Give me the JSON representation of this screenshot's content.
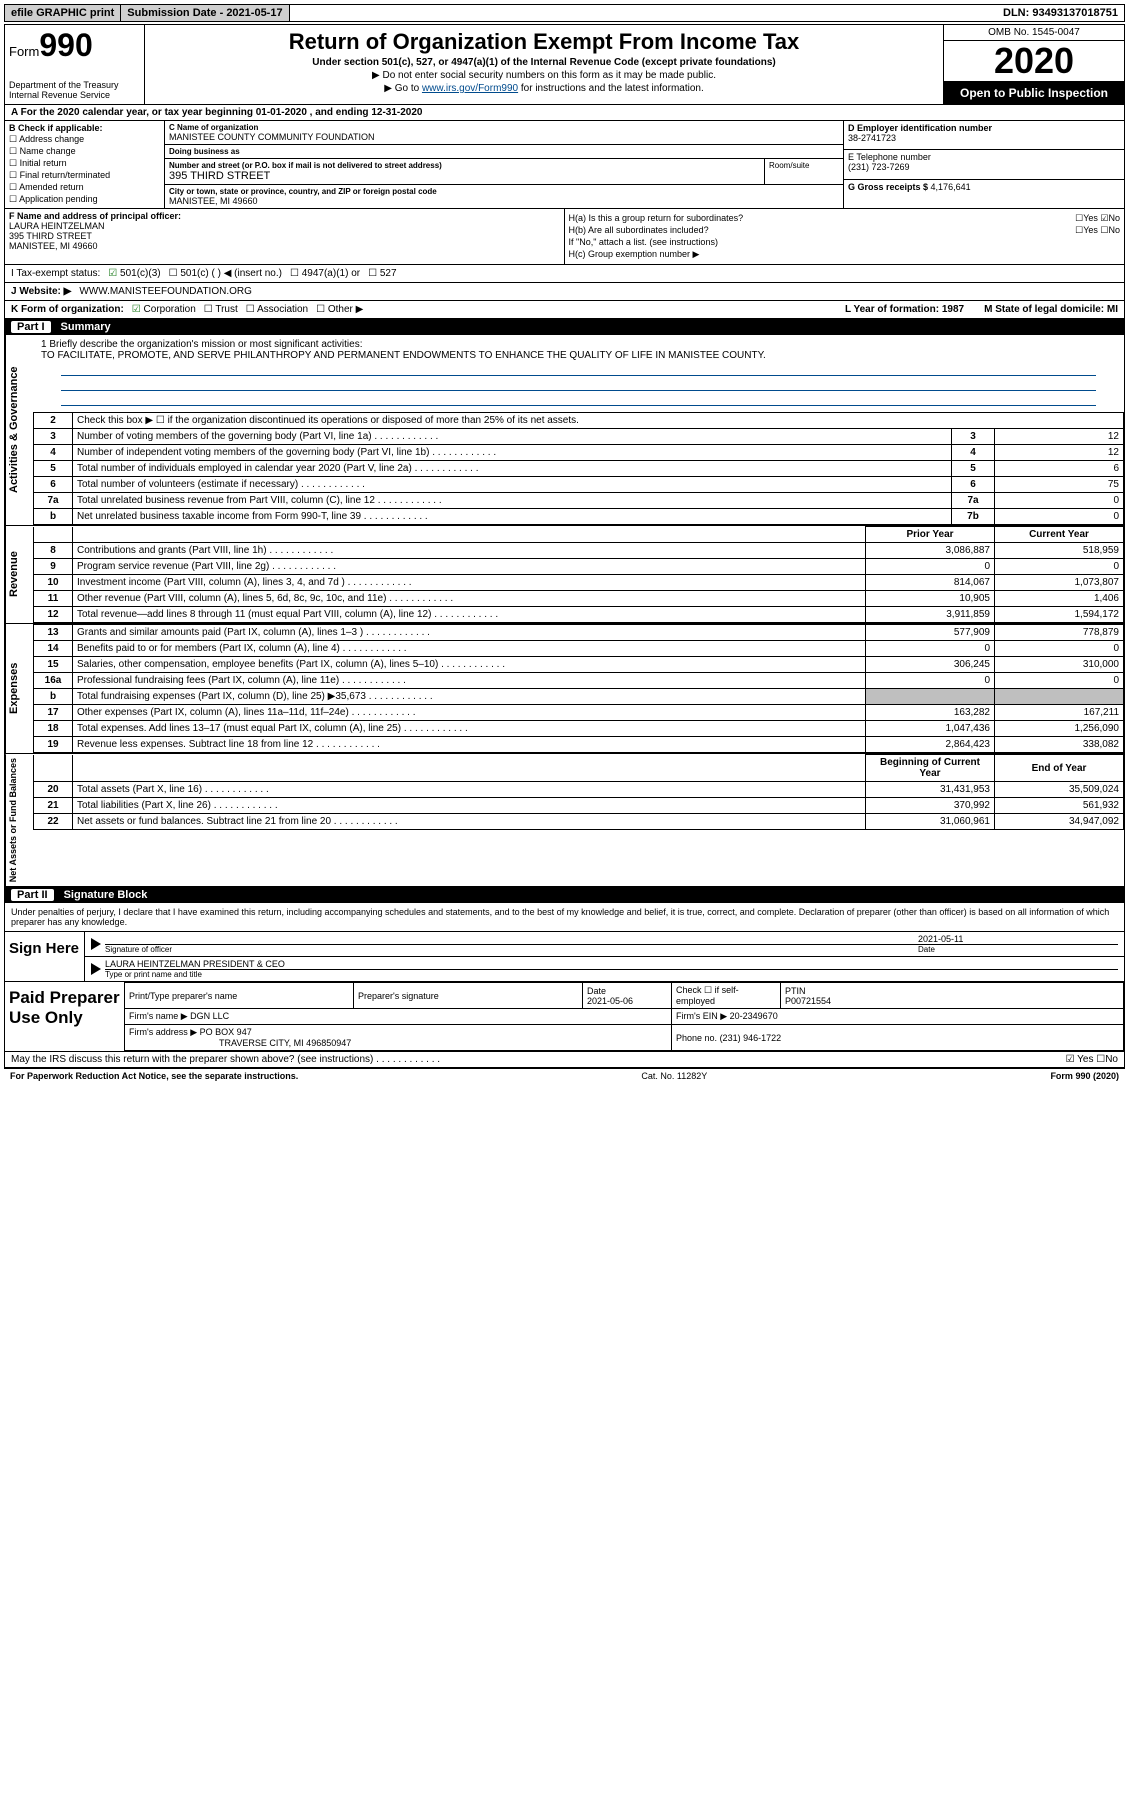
{
  "topbar": {
    "efile": "efile GRAPHIC print",
    "submission_label": "Submission Date - 2021-05-17",
    "dln": "DLN: 93493137018751"
  },
  "header": {
    "form_word": "Form",
    "form_no": "990",
    "dept": "Department of the Treasury\nInternal Revenue Service",
    "title": "Return of Organization Exempt From Income Tax",
    "sub": "Under section 501(c), 527, or 4947(a)(1) of the Internal Revenue Code (except private foundations)",
    "arrow1": "▶ Do not enter social security numbers on this form as it may be made public.",
    "arrow2_pre": "▶ Go to ",
    "arrow2_link": "www.irs.gov/Form990",
    "arrow2_post": " for instructions and the latest information.",
    "omb": "OMB No. 1545-0047",
    "year": "2020",
    "open": "Open to Public Inspection"
  },
  "period": "A For the 2020 calendar year, or tax year beginning 01-01-2020     , and ending 12-31-2020",
  "colB": {
    "hdr": "B Check if applicable:",
    "rows": [
      "Address change",
      "Name change",
      "Initial return",
      "Final return/terminated",
      "Amended return",
      "Application pending"
    ]
  },
  "colC": {
    "name_lbl": "C Name of organization",
    "name": "MANISTEE COUNTY COMMUNITY FOUNDATION",
    "dba_lbl": "Doing business as",
    "dba": "",
    "addr_lbl": "Number and street (or P.O. box if mail is not delivered to street address)",
    "room_lbl": "Room/suite",
    "addr": "395 THIRD STREET",
    "city_lbl": "City or town, state or province, country, and ZIP or foreign postal code",
    "city": "MANISTEE, MI  49660"
  },
  "colD": {
    "d_lbl": "D Employer identification number",
    "d_val": "38-2741723",
    "e_lbl": "E Telephone number",
    "e_val": "(231) 723-7269",
    "g_lbl": "G Gross receipts $ ",
    "g_val": "4,176,641"
  },
  "f": {
    "lbl": "F  Name and address of principal officer:",
    "name": "LAURA HEINTZELMAN",
    "addr1": "395 THIRD STREET",
    "addr2": "MANISTEE, MI  49660"
  },
  "h": {
    "a": "H(a)  Is this a group return for subordinates?",
    "a_yes": "☐Yes",
    "a_no": "☑No",
    "b": "H(b)  Are all subordinates included?",
    "b_yes": "☐Yes",
    "b_no": "☐No",
    "b_note": "If \"No,\" attach a list. (see instructions)",
    "c": "H(c)  Group exemption number ▶"
  },
  "i": {
    "lbl": "I   Tax-exempt status:",
    "o1": "501(c)(3)",
    "o2": "501(c) (  )  ◀ (insert no.)",
    "o3": "4947(a)(1) or",
    "o4": "527"
  },
  "j": {
    "lbl": "J   Website: ▶",
    "val": "WWW.MANISTEEFOUNDATION.ORG"
  },
  "k": {
    "lbl": "K Form of organization:",
    "o1": "Corporation",
    "o2": "Trust",
    "o3": "Association",
    "o4": "Other ▶",
    "l": "L Year of formation: 1987",
    "m": "M State of legal domicile: MI"
  },
  "part1_title": "Summary",
  "sections": {
    "act": "Activities & Governance",
    "rev": "Revenue",
    "exp": "Expenses",
    "net": "Net Assets or Fund Balances"
  },
  "line1": {
    "lbl": "1  Briefly describe the organization's mission or most significant activities:",
    "text": "TO FACILITATE, PROMOTE, AND SERVE PHILANTHROPY AND PERMANENT ENDOWMENTS TO ENHANCE THE QUALITY OF LIFE IN MANISTEE COUNTY."
  },
  "act_rows": [
    {
      "n": "2",
      "d": "Check this box ▶ ☐  if the organization discontinued its operations or disposed of more than 25% of its net assets.",
      "box": "",
      "v": ""
    },
    {
      "n": "3",
      "d": "Number of voting members of the governing body (Part VI, line 1a)",
      "box": "3",
      "v": "12"
    },
    {
      "n": "4",
      "d": "Number of independent voting members of the governing body (Part VI, line 1b)",
      "box": "4",
      "v": "12"
    },
    {
      "n": "5",
      "d": "Total number of individuals employed in calendar year 2020 (Part V, line 2a)",
      "box": "5",
      "v": "6"
    },
    {
      "n": "6",
      "d": "Total number of volunteers (estimate if necessary)",
      "box": "6",
      "v": "75"
    },
    {
      "n": "7a",
      "d": "Total unrelated business revenue from Part VIII, column (C), line 12",
      "box": "7a",
      "v": "0"
    },
    {
      "n": "b",
      "d": "Net unrelated business taxable income from Form 990-T, line 39",
      "box": "7b",
      "v": "0"
    }
  ],
  "two_col_hdr": {
    "prior": "Prior Year",
    "curr": "Current Year"
  },
  "rev_rows": [
    {
      "n": "8",
      "d": "Contributions and grants (Part VIII, line 1h)",
      "p": "3,086,887",
      "c": "518,959"
    },
    {
      "n": "9",
      "d": "Program service revenue (Part VIII, line 2g)",
      "p": "0",
      "c": "0"
    },
    {
      "n": "10",
      "d": "Investment income (Part VIII, column (A), lines 3, 4, and 7d )",
      "p": "814,067",
      "c": "1,073,807"
    },
    {
      "n": "11",
      "d": "Other revenue (Part VIII, column (A), lines 5, 6d, 8c, 9c, 10c, and 11e)",
      "p": "10,905",
      "c": "1,406"
    },
    {
      "n": "12",
      "d": "Total revenue—add lines 8 through 11 (must equal Part VIII, column (A), line 12)",
      "p": "3,911,859",
      "c": "1,594,172"
    }
  ],
  "exp_rows": [
    {
      "n": "13",
      "d": "Grants and similar amounts paid (Part IX, column (A), lines 1–3 )",
      "p": "577,909",
      "c": "778,879"
    },
    {
      "n": "14",
      "d": "Benefits paid to or for members (Part IX, column (A), line 4)",
      "p": "0",
      "c": "0"
    },
    {
      "n": "15",
      "d": "Salaries, other compensation, employee benefits (Part IX, column (A), lines 5–10)",
      "p": "306,245",
      "c": "310,000"
    },
    {
      "n": "16a",
      "d": "Professional fundraising fees (Part IX, column (A), line 11e)",
      "p": "0",
      "c": "0"
    },
    {
      "n": "b",
      "d": "Total fundraising expenses (Part IX, column (D), line 25) ▶35,673",
      "p": "gray",
      "c": "gray"
    },
    {
      "n": "17",
      "d": "Other expenses (Part IX, column (A), lines 11a–11d, 11f–24e)",
      "p": "163,282",
      "c": "167,211"
    },
    {
      "n": "18",
      "d": "Total expenses. Add lines 13–17 (must equal Part IX, column (A), line 25)",
      "p": "1,047,436",
      "c": "1,256,090"
    },
    {
      "n": "19",
      "d": "Revenue less expenses. Subtract line 18 from line 12",
      "p": "2,864,423",
      "c": "338,082"
    }
  ],
  "net_hdr": {
    "begin": "Beginning of Current Year",
    "end": "End of Year"
  },
  "net_rows": [
    {
      "n": "20",
      "d": "Total assets (Part X, line 16)",
      "p": "31,431,953",
      "c": "35,509,024"
    },
    {
      "n": "21",
      "d": "Total liabilities (Part X, line 26)",
      "p": "370,992",
      "c": "561,932"
    },
    {
      "n": "22",
      "d": "Net assets or fund balances. Subtract line 21 from line 20",
      "p": "31,060,961",
      "c": "34,947,092"
    }
  ],
  "part2_title": "Signature Block",
  "sig": {
    "intro": "Under penalties of perjury, I declare that I have examined this return, including accompanying schedules and statements, and to the best of my knowledge and belief, it is true, correct, and complete. Declaration of preparer (other than officer) is based on all information of which preparer has any knowledge.",
    "sign_here": "Sign Here",
    "sig_lbl": "Signature of officer",
    "date_lbl": "Date",
    "date_val": "2021-05-11",
    "name": "LAURA HEINTZELMAN  PRESIDENT & CEO",
    "name_lbl": "Type or print name and title"
  },
  "prep": {
    "title": "Paid Preparer Use Only",
    "h1": "Print/Type preparer's name",
    "h2": "Preparer's signature",
    "h3": "Date",
    "h3v": "2021-05-06",
    "h4": "Check ☐ if self-employed",
    "h5": "PTIN",
    "h5v": "P00721554",
    "firm_lbl": "Firm's name    ▶",
    "firm": "DGN LLC",
    "ein_lbl": "Firm's EIN ▶",
    "ein": "20-2349670",
    "addr_lbl": "Firm's address ▶",
    "addr1": "PO BOX 947",
    "addr2": "TRAVERSE CITY, MI  496850947",
    "phone_lbl": "Phone no.",
    "phone": "(231) 946-1722",
    "discuss": "May the IRS discuss this return with the preparer shown above? (see instructions)",
    "d_yes": "☑ Yes",
    "d_no": "☐No"
  },
  "foot": {
    "left": "For Paperwork Reduction Act Notice, see the separate instructions.",
    "mid": "Cat. No. 11282Y",
    "right": "Form 990 (2020)"
  },
  "colors": {
    "link": "#004b8d",
    "dark": "#000000",
    "gray": "#bfbfbf",
    "btn": "#cfcfcf",
    "green": "#1a7a1a"
  }
}
